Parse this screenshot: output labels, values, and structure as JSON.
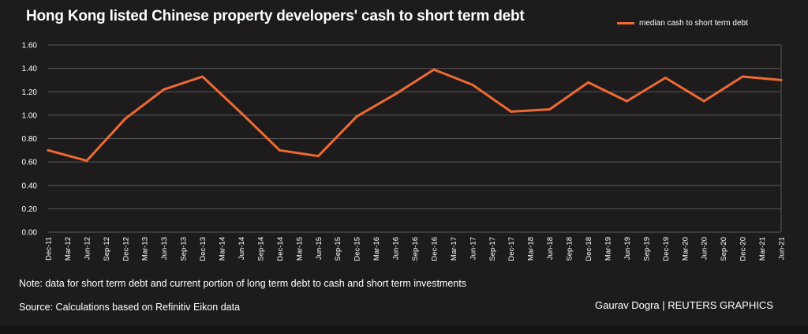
{
  "title": "Hong Kong listed Chinese property developers' cash to short term debt",
  "note": "Note: data for short term debt and current portion of long term debt to cash and short term investments",
  "source": "Source: Calculations based on Refinitiv Eikon data",
  "credit": "Gaurav Dogra | REUTERS GRAPHICS",
  "colors": {
    "background": "#1d1b1c",
    "line": "#ee6a33",
    "grid": "#5a5859",
    "text": "#ffffff"
  },
  "chart_data": {
    "type": "line",
    "title": "Hong Kong listed Chinese property developers' cash to short term debt",
    "xlabel": "",
    "ylabel": "",
    "ylim": [
      0,
      1.6
    ],
    "yticks": [
      "0.00",
      "0.20",
      "0.40",
      "0.60",
      "0.80",
      "1.00",
      "1.20",
      "1.40",
      "1.60"
    ],
    "grid": true,
    "legend_position": "top-right",
    "categories": [
      "Dec-11",
      "Mar-12",
      "Jun-12",
      "Sep-12",
      "Dec-12",
      "Mar-13",
      "Jun-13",
      "Sep-13",
      "Dec-13",
      "Mar-14",
      "Jun-14",
      "Sep-14",
      "Dec-14",
      "Mar-15",
      "Jun-15",
      "Sep-15",
      "Dec-15",
      "Mar-16",
      "Jun-16",
      "Sep-16",
      "Dec-16",
      "Mar-17",
      "Jun-17",
      "Sep-17",
      "Dec-17",
      "Mar-18",
      "Jun-18",
      "Sep-18",
      "Dec-18",
      "Mar-19",
      "Jun-19",
      "Sep-19",
      "Dec-19",
      "Mar-20",
      "Jun-20",
      "Sep-20",
      "Dec-20",
      "Mar-21",
      "Jun-21"
    ],
    "series": [
      {
        "name": "median cash to short term debt",
        "x": [
          "Dec-11",
          "Jun-12",
          "Dec-12",
          "Jun-13",
          "Dec-13",
          "Jun-14",
          "Dec-14",
          "Jun-15",
          "Dec-15",
          "Jun-16",
          "Dec-16",
          "Jun-17",
          "Dec-17",
          "Jun-18",
          "Dec-18",
          "Jun-19",
          "Dec-19",
          "Jun-20",
          "Dec-20",
          "Jun-21"
        ],
        "values": [
          0.7,
          0.61,
          0.97,
          1.22,
          1.33,
          1.02,
          0.7,
          0.65,
          0.99,
          1.18,
          1.39,
          1.26,
          1.03,
          1.05,
          1.28,
          1.12,
          1.32,
          1.12,
          1.33,
          1.3
        ]
      }
    ]
  }
}
